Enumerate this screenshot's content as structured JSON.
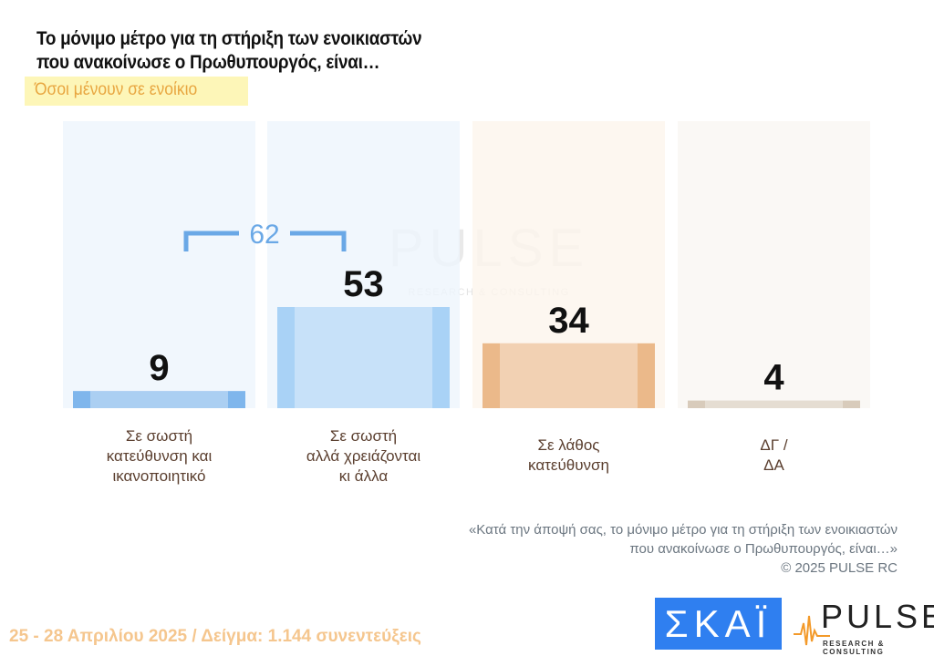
{
  "title_lines": [
    "Το μόνιμο μέτρο για τη στήριξη των ενοικιαστών",
    "που ανακοίνωσε ο Πρωθυπουργός, είναι…"
  ],
  "subtitle": "Όσοι μένουν σε ενοίκιο",
  "chart_data": {
    "type": "bar",
    "categories": [
      [
        "Σε σωστή",
        "κατεύθυνση και",
        "ικανοποιητικό"
      ],
      [
        "Σε σωστή",
        "αλλά χρειάζονται",
        "κι άλλα"
      ],
      [
        "Σε λάθος",
        "κατεύθυνση"
      ],
      [
        "ΔΓ /",
        "ΔΑ"
      ]
    ],
    "values": [
      9,
      53,
      34,
      4
    ],
    "ylim": [
      0,
      150
    ],
    "colors": [
      "#7fb6ec",
      "#a9d2f6",
      "#ebb98a",
      "#d8cbbb"
    ],
    "background_colors": [
      "#eef5fc",
      "#eef5fc",
      "#fdf5ec",
      "#f9f6f2"
    ],
    "bracket": {
      "label": "62",
      "spans": [
        0,
        1
      ],
      "color": "#6aa8e6"
    },
    "grid": false
  },
  "watermark": {
    "name": "PULSE",
    "tagline": "RESEARCH & CONSULTING"
  },
  "note_lines": [
    "«Κατά την άποψή σας, το μόνιμο μέτρο για τη στήριξη των ενοικιαστών",
    "που ανακοίνωσε ο Πρωθυπουργός, είναι…»",
    "©  2025  PULSE RC"
  ],
  "footer": "25 - 28 Απριλίου 2025  /  Δείγμα:  1.144 συνεντεύξεις",
  "logos": {
    "skai": "ΣΚΑΪ",
    "pulse": "PULSE",
    "pulse_tagline": "RESEARCH & CONSULTING"
  }
}
